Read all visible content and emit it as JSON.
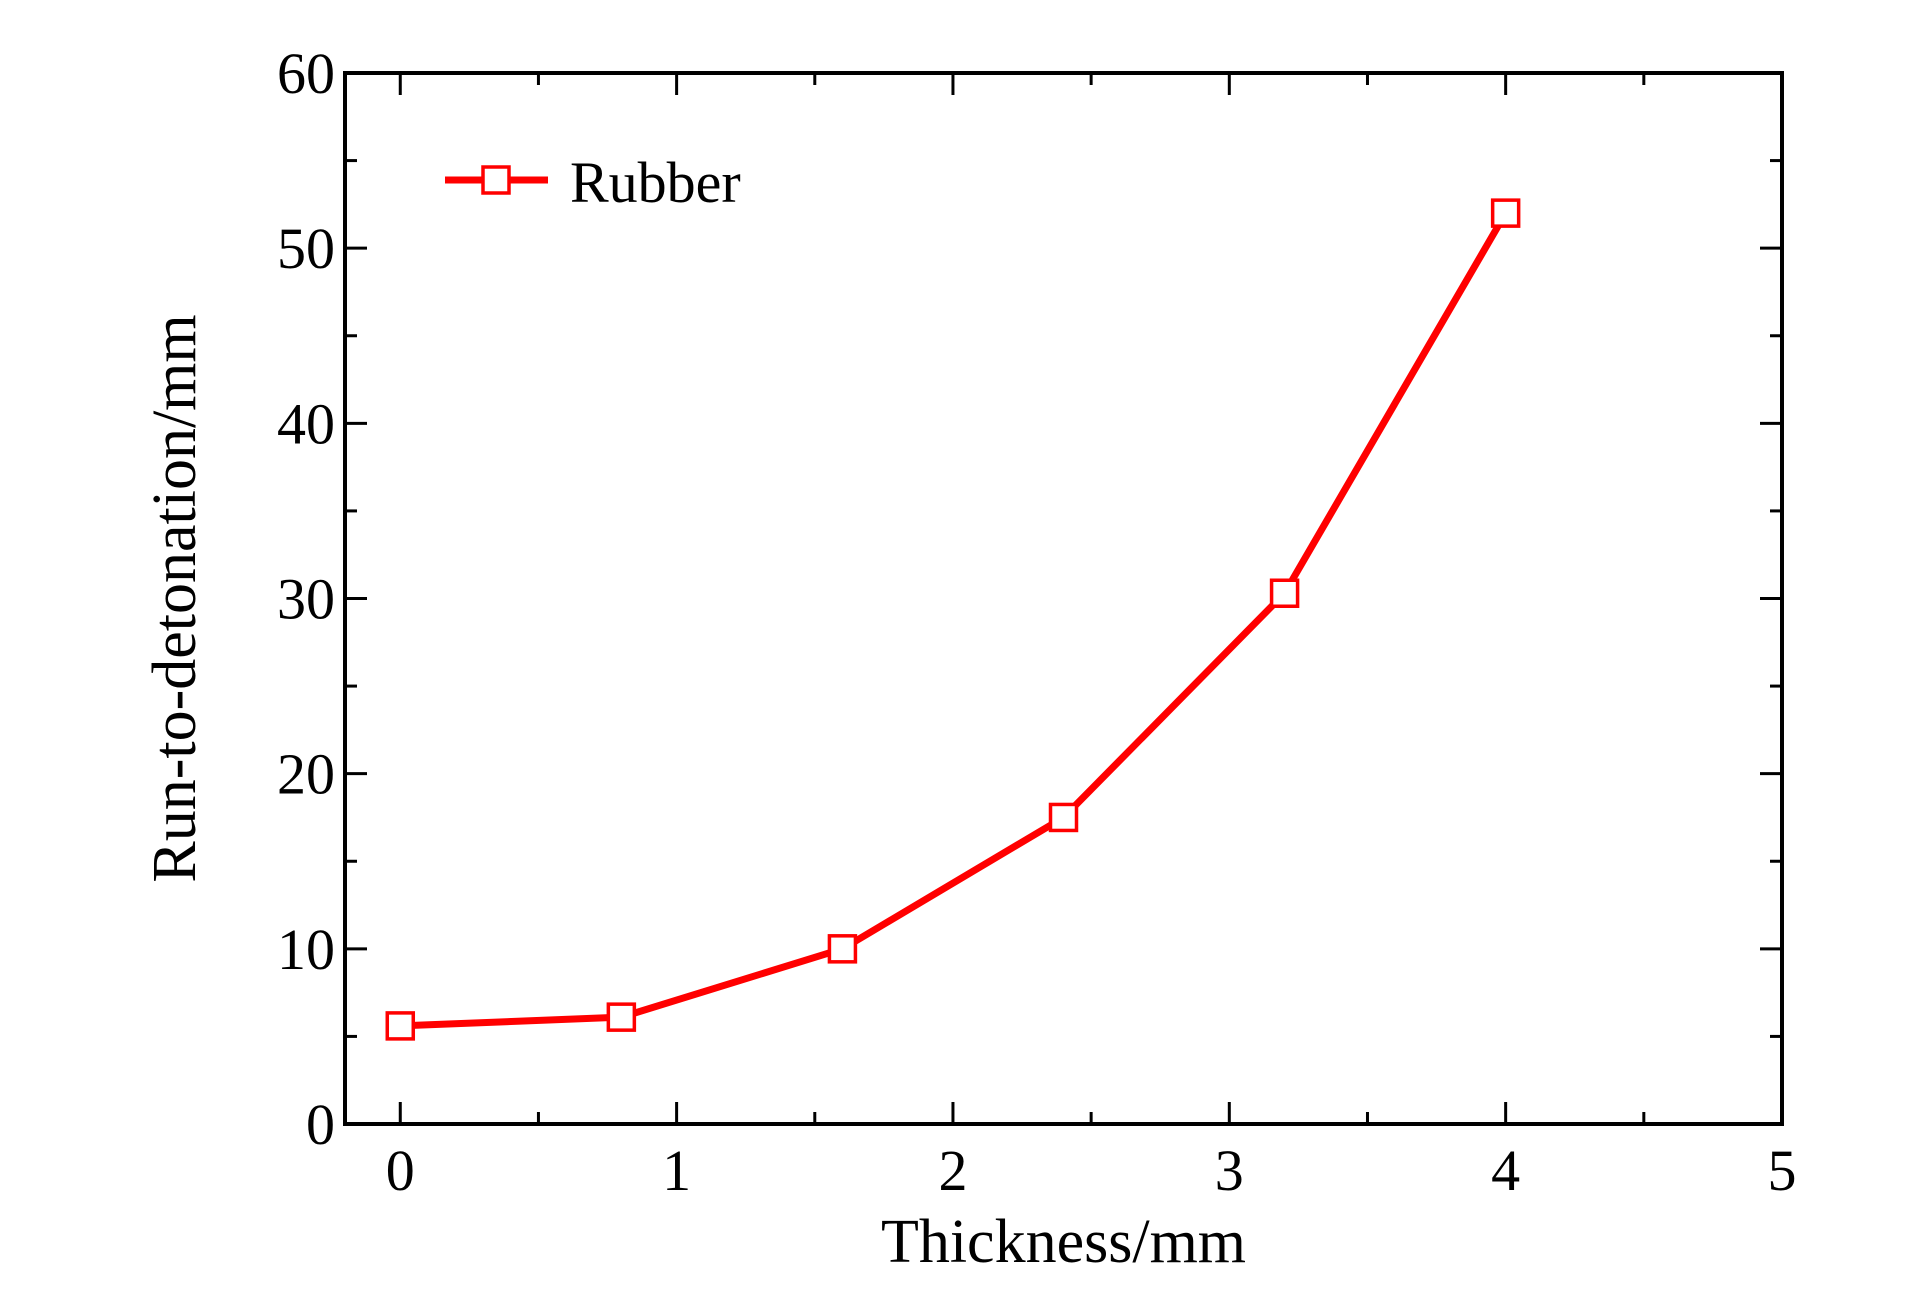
{
  "chart_data": {
    "type": "line",
    "title": "",
    "xlabel": "Thickness/mm",
    "ylabel": "Run-to-detonation/mm",
    "xlim": [
      -0.2,
      5
    ],
    "ylim": [
      0,
      60
    ],
    "x_ticks": [
      "0",
      "1",
      "2",
      "3",
      "4",
      "5"
    ],
    "y_ticks": [
      "0",
      "10",
      "20",
      "30",
      "40",
      "50",
      "60"
    ],
    "grid": false,
    "legend_position": "top-left",
    "series": [
      {
        "name": "Rubber",
        "color": "#ff0000",
        "marker": "open-square",
        "x": [
          0,
          0.8,
          1.6,
          2.4,
          3.2,
          4.0
        ],
        "y": [
          5.6,
          6.1,
          10.0,
          17.5,
          30.3,
          52.0
        ]
      }
    ]
  }
}
